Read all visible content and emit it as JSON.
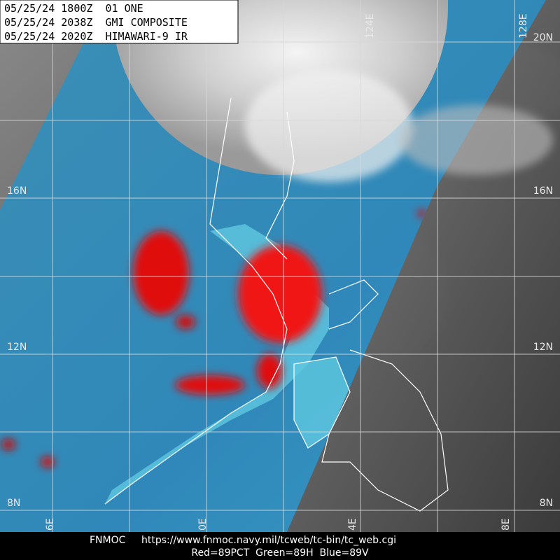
{
  "header": {
    "lines": [
      "05/25/24 1800Z  01 ONE",
      "05/25/24 2038Z  GMI COMPOSITE",
      "05/25/24 2020Z  HIMAWARI-9 IR"
    ]
  },
  "lat_labels_right": [
    "20N",
    "16N",
    "12N",
    "8N"
  ],
  "lat_labels_left": [
    "16N",
    "12N",
    "8N"
  ],
  "lon_labels_top": [
    "124E",
    "128E"
  ],
  "lon_labels_bottom": [
    "6E",
    "0E",
    "4E",
    "8E"
  ],
  "footer": {
    "source": "FNMOC",
    "url": "https://www.fnmoc.navy.mil/tcweb/tc-bin/tc_web.cgi",
    "channels": "Red=89PCT  Green=89H  Blue=89V"
  }
}
